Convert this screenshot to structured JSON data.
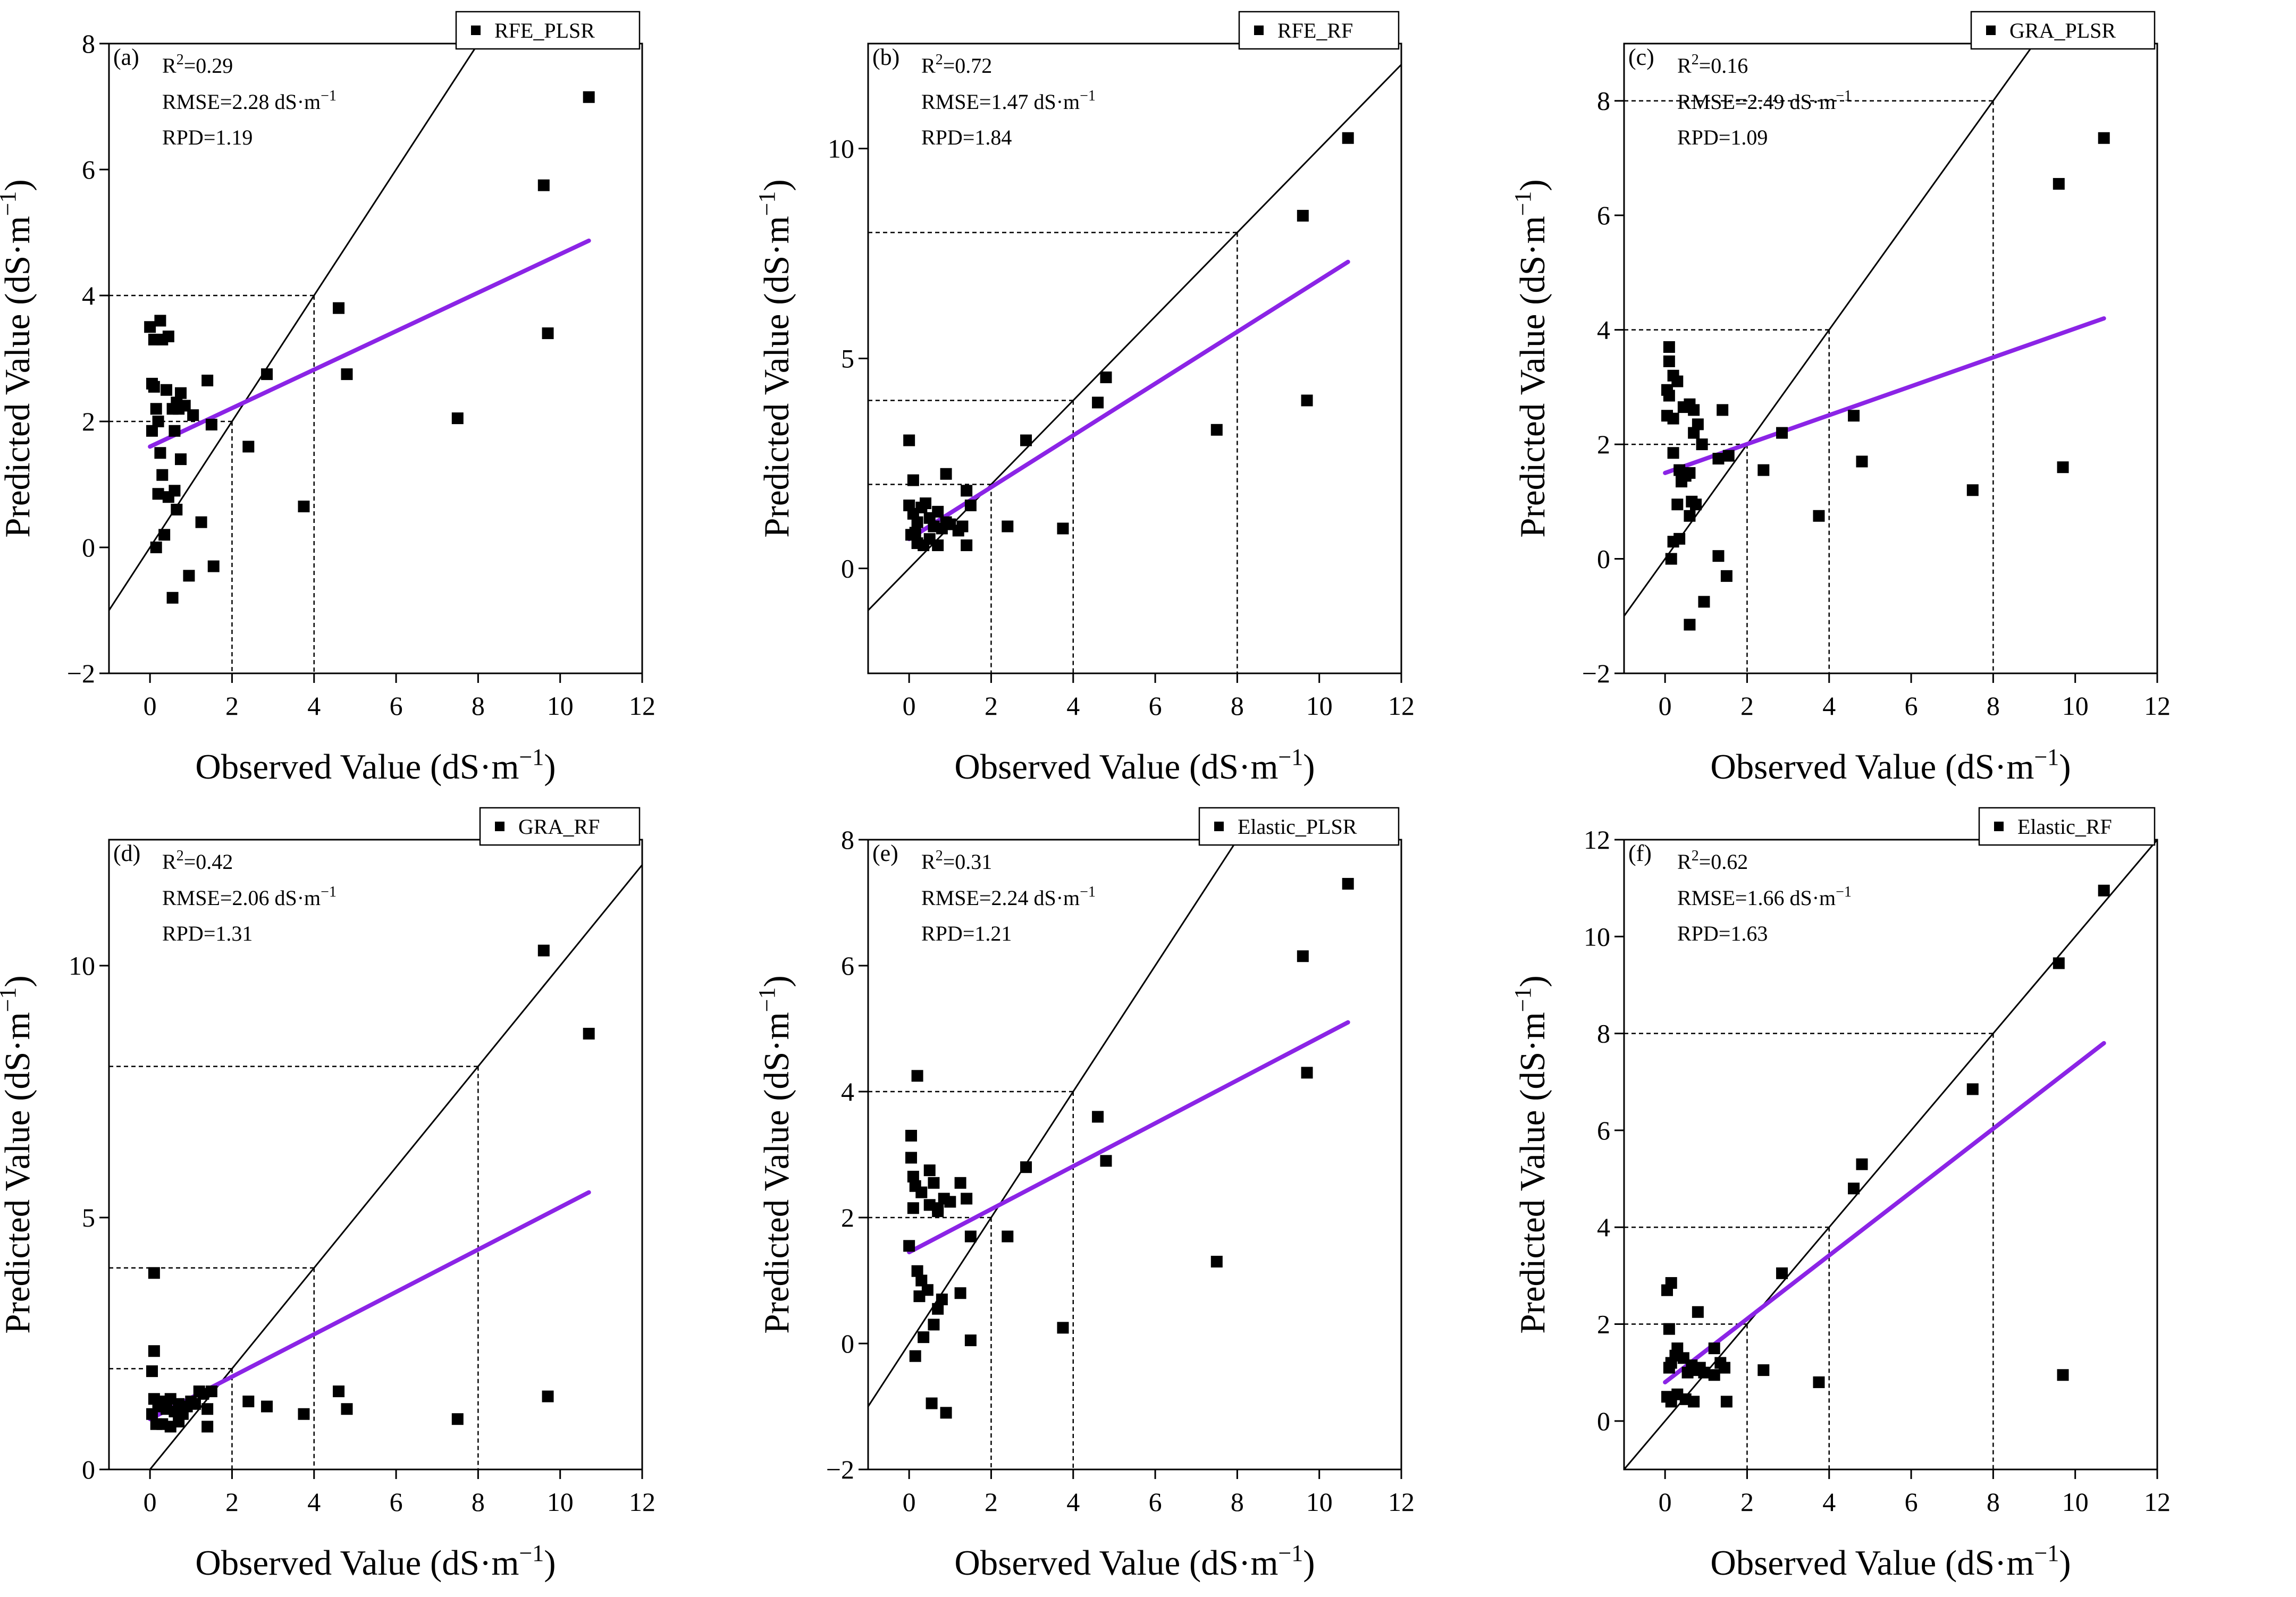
{
  "chart_data": [
    {
      "type": "scatter",
      "panel_label": "(a)",
      "legend": "RFE_PLSR",
      "stats": {
        "r2": "0.29",
        "rmse": "2.28",
        "rpd": "1.19"
      },
      "xlabel": "Observed Value (dS·m",
      "ylabel": "Predicted Value (dS·m",
      "xlim": [
        -1,
        12
      ],
      "ylim": [
        -2,
        8
      ],
      "xticks": [
        0,
        2,
        4,
        6,
        8,
        10,
        12
      ],
      "yticks": [
        -2,
        0,
        2,
        4,
        6,
        8
      ],
      "fit_line": [
        [
          0,
          1.6
        ],
        [
          10.7,
          4.87
        ]
      ],
      "points": [
        [
          0,
          3.5
        ],
        [
          0.1,
          3.3
        ],
        [
          0.25,
          3.6
        ],
        [
          0.3,
          3.3
        ],
        [
          0.45,
          3.35
        ],
        [
          0.05,
          2.6
        ],
        [
          0.1,
          2.55
        ],
        [
          0.15,
          2.2
        ],
        [
          0.2,
          2.0
        ],
        [
          0.05,
          1.85
        ],
        [
          0.4,
          2.5
        ],
        [
          0.55,
          2.2
        ],
        [
          0.65,
          2.3
        ],
        [
          0.75,
          2.45
        ],
        [
          0.85,
          2.25
        ],
        [
          0.7,
          2.2
        ],
        [
          0.6,
          1.85
        ],
        [
          1.05,
          2.1
        ],
        [
          1.4,
          2.65
        ],
        [
          1.5,
          1.95
        ],
        [
          2.4,
          1.6
        ],
        [
          2.85,
          2.75
        ],
        [
          0.25,
          1.5
        ],
        [
          0.3,
          1.15
        ],
        [
          0.75,
          1.4
        ],
        [
          0.2,
          0.85
        ],
        [
          0.45,
          0.8
        ],
        [
          0.6,
          0.9
        ],
        [
          0.65,
          0.6
        ],
        [
          1.25,
          0.4
        ],
        [
          0.35,
          0.2
        ],
        [
          0.15,
          0.0
        ],
        [
          1.55,
          -0.3
        ],
        [
          0.95,
          -0.45
        ],
        [
          0.55,
          -0.8
        ],
        [
          3.75,
          0.65
        ],
        [
          4.6,
          3.8
        ],
        [
          4.8,
          2.75
        ],
        [
          7.5,
          2.05
        ],
        [
          9.6,
          5.75
        ],
        [
          9.7,
          3.4
        ],
        [
          10.7,
          7.15
        ]
      ]
    },
    {
      "type": "scatter",
      "panel_label": "(b)",
      "legend": "RFE_RF",
      "stats": {
        "r2": "0.72",
        "rmse": "1.47",
        "rpd": "1.84"
      },
      "xlabel": "Observed Value (dS·m",
      "ylabel": "Predicted Value (dS·m",
      "xlim": [
        -1,
        12
      ],
      "ylim": [
        -2.5,
        12.5
      ],
      "xticks": [
        0,
        2,
        4,
        6,
        8,
        10,
        12
      ],
      "yticks": [
        0,
        5,
        10
      ],
      "fit_line": [
        [
          0,
          0.7
        ],
        [
          10.7,
          7.3
        ]
      ],
      "points": [
        [
          0,
          3.05
        ],
        [
          0.1,
          2.1
        ],
        [
          0,
          1.5
        ],
        [
          0.1,
          1.3
        ],
        [
          0.2,
          1.1
        ],
        [
          0.3,
          1.45
        ],
        [
          0.4,
          1.55
        ],
        [
          0.5,
          1.2
        ],
        [
          0.6,
          1.0
        ],
        [
          0.7,
          1.35
        ],
        [
          0.8,
          0.95
        ],
        [
          0.9,
          1.1
        ],
        [
          1.0,
          1.05
        ],
        [
          1.2,
          0.9
        ],
        [
          1.3,
          1.0
        ],
        [
          0.9,
          2.25
        ],
        [
          1.4,
          1.85
        ],
        [
          1.5,
          1.5
        ],
        [
          0.05,
          0.8
        ],
        [
          0.2,
          0.6
        ],
        [
          0.35,
          0.55
        ],
        [
          0.5,
          0.7
        ],
        [
          0.7,
          0.55
        ],
        [
          1.4,
          0.55
        ],
        [
          0.15,
          0.85
        ],
        [
          2.4,
          1.0
        ],
        [
          2.85,
          3.05
        ],
        [
          3.75,
          0.95
        ],
        [
          4.6,
          3.95
        ],
        [
          4.8,
          4.55
        ],
        [
          7.5,
          3.3
        ],
        [
          9.6,
          8.4
        ],
        [
          9.7,
          4.0
        ],
        [
          10.7,
          10.25
        ]
      ]
    },
    {
      "type": "scatter",
      "panel_label": "(c)",
      "legend": "GRA_PLSR",
      "stats": {
        "r2": "0.16",
        "rmse": "2.49",
        "rpd": "1.09"
      },
      "xlabel": "Observed Value (dS·m",
      "ylabel": "Predicted Value (dS·m",
      "xlim": [
        -1,
        12
      ],
      "ylim": [
        -2,
        9
      ],
      "xticks": [
        0,
        2,
        4,
        6,
        8,
        10,
        12
      ],
      "yticks": [
        -2,
        0,
        2,
        4,
        6,
        8
      ],
      "fit_line": [
        [
          0,
          1.5
        ],
        [
          10.7,
          4.2
        ]
      ],
      "points": [
        [
          0.1,
          3.7
        ],
        [
          0.1,
          3.45
        ],
        [
          0.2,
          3.2
        ],
        [
          0.3,
          3.1
        ],
        [
          0.05,
          2.95
        ],
        [
          0.1,
          2.85
        ],
        [
          0.05,
          2.5
        ],
        [
          0.2,
          2.45
        ],
        [
          0.45,
          2.65
        ],
        [
          0.6,
          2.7
        ],
        [
          0.7,
          2.6
        ],
        [
          0.8,
          2.35
        ],
        [
          0.7,
          2.2
        ],
        [
          0.9,
          2.0
        ],
        [
          1.4,
          2.6
        ],
        [
          2.85,
          2.2
        ],
        [
          0.2,
          1.85
        ],
        [
          0.35,
          1.55
        ],
        [
          0.5,
          1.45
        ],
        [
          0.4,
          1.35
        ],
        [
          0.6,
          1.5
        ],
        [
          1.3,
          1.75
        ],
        [
          1.55,
          1.8
        ],
        [
          0.3,
          0.95
        ],
        [
          0.65,
          1.0
        ],
        [
          0.75,
          0.95
        ],
        [
          0.6,
          0.75
        ],
        [
          0.35,
          0.35
        ],
        [
          0.2,
          0.3
        ],
        [
          0.15,
          0.0
        ],
        [
          1.3,
          0.05
        ],
        [
          1.5,
          -0.3
        ],
        [
          0.95,
          -0.75
        ],
        [
          0.6,
          -1.15
        ],
        [
          2.4,
          1.55
        ],
        [
          3.75,
          0.75
        ],
        [
          4.6,
          2.5
        ],
        [
          4.8,
          1.7
        ],
        [
          7.5,
          1.2
        ],
        [
          9.6,
          6.55
        ],
        [
          9.7,
          1.6
        ],
        [
          10.7,
          7.35
        ]
      ]
    },
    {
      "type": "scatter",
      "panel_label": "(d)",
      "legend": "GRA_RF",
      "stats": {
        "r2": "0.42",
        "rmse": "2.06",
        "rpd": "1.31"
      },
      "xlabel": "Observed Value (dS·m",
      "ylabel": "Predicted Value (dS·m",
      "xlim": [
        -1,
        12
      ],
      "ylim": [
        0,
        12.5
      ],
      "xticks": [
        0,
        2,
        4,
        6,
        8,
        10,
        12
      ],
      "yticks": [
        0,
        5,
        10
      ],
      "fit_line": [
        [
          0,
          1.0
        ],
        [
          10.7,
          5.5
        ]
      ],
      "points": [
        [
          0.1,
          3.9
        ],
        [
          0.1,
          2.35
        ],
        [
          0.05,
          1.95
        ],
        [
          0.1,
          1.4
        ],
        [
          0.2,
          1.25
        ],
        [
          0.3,
          1.35
        ],
        [
          0.4,
          1.2
        ],
        [
          0.5,
          1.4
        ],
        [
          0.6,
          1.15
        ],
        [
          0.7,
          1.3
        ],
        [
          0.8,
          1.1
        ],
        [
          0.9,
          1.25
        ],
        [
          1.0,
          1.35
        ],
        [
          1.1,
          1.3
        ],
        [
          1.2,
          1.55
        ],
        [
          1.3,
          1.5
        ],
        [
          1.4,
          1.2
        ],
        [
          1.5,
          1.55
        ],
        [
          0.15,
          0.9
        ],
        [
          0.3,
          0.9
        ],
        [
          0.5,
          0.85
        ],
        [
          0.7,
          0.95
        ],
        [
          1.4,
          0.85
        ],
        [
          0.05,
          1.1
        ],
        [
          2.4,
          1.35
        ],
        [
          2.85,
          1.25
        ],
        [
          3.75,
          1.1
        ],
        [
          4.6,
          1.55
        ],
        [
          4.8,
          1.2
        ],
        [
          7.5,
          1.0
        ],
        [
          9.6,
          10.3
        ],
        [
          9.7,
          1.45
        ],
        [
          10.7,
          8.65
        ]
      ]
    },
    {
      "type": "scatter",
      "panel_label": "(e)",
      "legend": "Elastic_PLSR",
      "stats": {
        "r2": "0.31",
        "rmse": "2.24",
        "rpd": "1.21"
      },
      "xlabel": "Observed Value (dS·m",
      "ylabel": "Predicted Value (dS·m",
      "xlim": [
        -1,
        12
      ],
      "ylim": [
        -2,
        8
      ],
      "xticks": [
        0,
        2,
        4,
        6,
        8,
        10,
        12
      ],
      "yticks": [
        -2,
        0,
        2,
        4,
        6,
        8
      ],
      "fit_line": [
        [
          0,
          1.45
        ],
        [
          10.7,
          5.1
        ]
      ],
      "points": [
        [
          0.2,
          4.25
        ],
        [
          0.05,
          3.3
        ],
        [
          0.05,
          2.95
        ],
        [
          0.1,
          2.65
        ],
        [
          0.15,
          2.5
        ],
        [
          0.3,
          2.4
        ],
        [
          0.5,
          2.75
        ],
        [
          0.6,
          2.55
        ],
        [
          0.5,
          2.2
        ],
        [
          0.7,
          2.15
        ],
        [
          0.85,
          2.3
        ],
        [
          1.0,
          2.25
        ],
        [
          1.25,
          2.55
        ],
        [
          1.4,
          2.3
        ],
        [
          0.1,
          2.15
        ],
        [
          0,
          1.55
        ],
        [
          2.85,
          2.8
        ],
        [
          0.7,
          2.1
        ],
        [
          1.5,
          1.7
        ],
        [
          2.4,
          1.7
        ],
        [
          0.2,
          1.15
        ],
        [
          0.3,
          1.0
        ],
        [
          0.45,
          0.85
        ],
        [
          0.25,
          0.75
        ],
        [
          0.8,
          0.7
        ],
        [
          1.25,
          0.8
        ],
        [
          0.7,
          0.55
        ],
        [
          0.6,
          0.3
        ],
        [
          0.35,
          0.1
        ],
        [
          1.5,
          0.05
        ],
        [
          0.15,
          -0.2
        ],
        [
          0.55,
          -0.95
        ],
        [
          0.9,
          -1.1
        ],
        [
          3.75,
          0.25
        ],
        [
          4.6,
          3.6
        ],
        [
          4.8,
          2.9
        ],
        [
          7.5,
          1.3
        ],
        [
          9.6,
          6.15
        ],
        [
          9.7,
          4.3
        ],
        [
          10.7,
          7.3
        ]
      ]
    },
    {
      "type": "scatter",
      "panel_label": "(f)",
      "legend": "Elastic_RF",
      "stats": {
        "r2": "0.62",
        "rmse": "1.66",
        "rpd": "1.63"
      },
      "xlabel": "Observed Value (dS·m",
      "ylabel": "Predicted Value (dS·m",
      "xlim": [
        -1,
        12
      ],
      "ylim": [
        -1,
        12
      ],
      "xticks": [
        0,
        2,
        4,
        6,
        8,
        10,
        12
      ],
      "yticks": [
        0,
        2,
        4,
        6,
        8,
        10,
        12
      ],
      "fit_line": [
        [
          0,
          0.8
        ],
        [
          10.7,
          7.8
        ]
      ],
      "points": [
        [
          0.15,
          2.85
        ],
        [
          0.05,
          2.7
        ],
        [
          0.1,
          1.9
        ],
        [
          0.15,
          1.2
        ],
        [
          0.25,
          1.35
        ],
        [
          0.3,
          1.5
        ],
        [
          0.45,
          1.3
        ],
        [
          0.55,
          1.0
        ],
        [
          0.65,
          1.15
        ],
        [
          0.75,
          1.05
        ],
        [
          0.85,
          1.1
        ],
        [
          0.95,
          1.0
        ],
        [
          0.8,
          2.25
        ],
        [
          1.2,
          1.5
        ],
        [
          1.35,
          1.2
        ],
        [
          1.45,
          1.1
        ],
        [
          0.05,
          0.5
        ],
        [
          0.15,
          0.4
        ],
        [
          0.3,
          0.55
        ],
        [
          0.5,
          0.45
        ],
        [
          0.7,
          0.4
        ],
        [
          1.2,
          0.95
        ],
        [
          1.5,
          0.4
        ],
        [
          0.1,
          1.1
        ],
        [
          2.4,
          1.05
        ],
        [
          2.85,
          3.05
        ],
        [
          3.75,
          0.8
        ],
        [
          4.6,
          4.8
        ],
        [
          4.8,
          5.3
        ],
        [
          7.5,
          6.85
        ],
        [
          9.6,
          9.45
        ],
        [
          9.7,
          0.95
        ],
        [
          10.7,
          10.95
        ]
      ]
    }
  ]
}
